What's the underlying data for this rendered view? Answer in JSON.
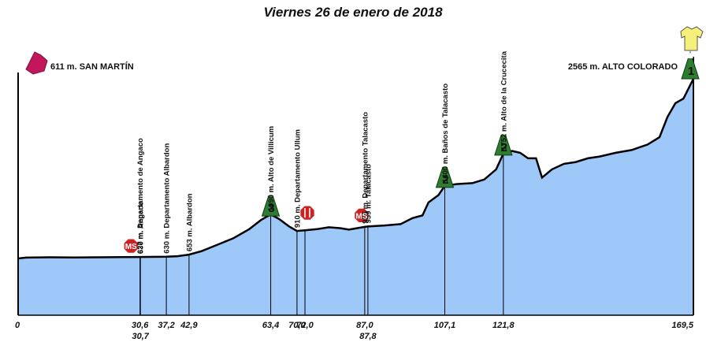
{
  "title": "Viernes 26 de enero de 2018",
  "start_label": "611 m. SAN MARTÍN",
  "finish_label": "2565 m. ALTO COLORADO",
  "colors": {
    "fill": "#9ec8f8",
    "outline": "#000000",
    "sprint": "#cc2222",
    "mountain": "#2e7d32",
    "start_marker": "#c2185b",
    "jersey": "#f5f07a"
  },
  "icons": {
    "start": "start-marker-icon",
    "finish_jersey": "leader-jersey-icon",
    "sprint": "sprint-meta-volante-icon",
    "feed": "feed-zone-icon",
    "mountain": "mountain-category-icon"
  },
  "chart_data": {
    "type": "area",
    "title": "Viernes 26 de enero de 2018",
    "xlabel": "",
    "ylabel": "",
    "xlim": [
      0,
      169.5
    ],
    "ylim": [
      500,
      2700
    ],
    "profile": [
      [
        0,
        611
      ],
      [
        2,
        620
      ],
      [
        8,
        624
      ],
      [
        14,
        622
      ],
      [
        20,
        624
      ],
      [
        26,
        626
      ],
      [
        30.6,
        627
      ],
      [
        33,
        628
      ],
      [
        37.2,
        630
      ],
      [
        40,
        636
      ],
      [
        42.9,
        653
      ],
      [
        46,
        690
      ],
      [
        50,
        760
      ],
      [
        54,
        830
      ],
      [
        58,
        930
      ],
      [
        61,
        1030
      ],
      [
        63.4,
        1090
      ],
      [
        65.5,
        1040
      ],
      [
        68,
        960
      ],
      [
        70,
        910
      ],
      [
        72,
        918
      ],
      [
        75,
        930
      ],
      [
        78,
        950
      ],
      [
        81,
        940
      ],
      [
        83,
        925
      ],
      [
        85,
        940
      ],
      [
        87,
        955
      ],
      [
        87.8,
        959
      ],
      [
        92,
        970
      ],
      [
        96,
        985
      ],
      [
        99,
        1050
      ],
      [
        101.5,
        1080
      ],
      [
        103,
        1220
      ],
      [
        105.5,
        1300
      ],
      [
        107.1,
        1400
      ],
      [
        110,
        1420
      ],
      [
        114,
        1430
      ],
      [
        117,
        1470
      ],
      [
        120,
        1580
      ],
      [
        121.8,
        1752
      ],
      [
        124,
        1780
      ],
      [
        126,
        1760
      ],
      [
        128,
        1700
      ],
      [
        130,
        1700
      ],
      [
        131.5,
        1490
      ],
      [
        134,
        1580
      ],
      [
        137,
        1640
      ],
      [
        140,
        1660
      ],
      [
        143,
        1700
      ],
      [
        146,
        1720
      ],
      [
        150,
        1760
      ],
      [
        154,
        1790
      ],
      [
        158,
        1850
      ],
      [
        161,
        1930
      ],
      [
        163,
        2150
      ],
      [
        165,
        2300
      ],
      [
        167,
        2350
      ],
      [
        169.5,
        2565
      ]
    ],
    "km_marks": [
      {
        "km": 0,
        "label": "0",
        "row": 0
      },
      {
        "km": 30.6,
        "label": "30,6",
        "row": 0
      },
      {
        "km": 30.7,
        "label": "30,7",
        "row": 1
      },
      {
        "km": 37.2,
        "label": "37,2",
        "row": 0
      },
      {
        "km": 42.9,
        "label": "42,9",
        "row": 0
      },
      {
        "km": 63.4,
        "label": "63,4",
        "row": 0
      },
      {
        "km": 70.0,
        "label": "70,0",
        "row": 0
      },
      {
        "km": 72.0,
        "label": "72,0",
        "row": 0
      },
      {
        "km": 87.0,
        "label": "87,0",
        "row": 0
      },
      {
        "km": 87.8,
        "label": "87,8",
        "row": 1
      },
      {
        "km": 107.1,
        "label": "107,1",
        "row": 0
      },
      {
        "km": 121.8,
        "label": "121,8",
        "row": 0
      },
      {
        "km": 169.5,
        "label": "169,5",
        "row": 0
      }
    ],
    "waypoints": [
      {
        "km": 30.6,
        "alt": 627,
        "text": "627 m. Departamento de Angaco"
      },
      {
        "km": 30.7,
        "alt": 630,
        "text": "630 m. Angaco"
      },
      {
        "km": 37.2,
        "alt": 630,
        "text": "630 m. Departamento Albardon"
      },
      {
        "km": 42.9,
        "alt": 653,
        "text": "653 m. Albardon"
      },
      {
        "km": 63.4,
        "alt": 1090,
        "text": "1090 m. Alto de Villicum"
      },
      {
        "km": 70.0,
        "alt": 910,
        "text": "910 m. Departamento Ullum"
      },
      {
        "km": 87.0,
        "alt": 955,
        "text": "955 m. Departamento Talacasto"
      },
      {
        "km": 87.8,
        "alt": 959,
        "text": "959 m. Talacasto"
      },
      {
        "km": 107.1,
        "alt": 1400,
        "text": "1400 m. Baños de Talacasto"
      },
      {
        "km": 121.8,
        "alt": 1752,
        "text": "1752 m. Alto de la Crucecita"
      }
    ],
    "mountains": [
      {
        "km": 63.4,
        "alt": 1090,
        "cat": "3"
      },
      {
        "km": 107.1,
        "alt": 1400,
        "cat": "2"
      },
      {
        "km": 121.8,
        "alt": 1752,
        "cat": "2"
      },
      {
        "km": 169.5,
        "alt": 2565,
        "cat": "1"
      }
    ],
    "sprints": [
      {
        "km": 30.7,
        "alt": 630,
        "text": "MS"
      },
      {
        "km": 87.8,
        "alt": 959,
        "text": "MS"
      }
    ],
    "feed_zone": {
      "km": 72.0,
      "alt": 918
    }
  }
}
